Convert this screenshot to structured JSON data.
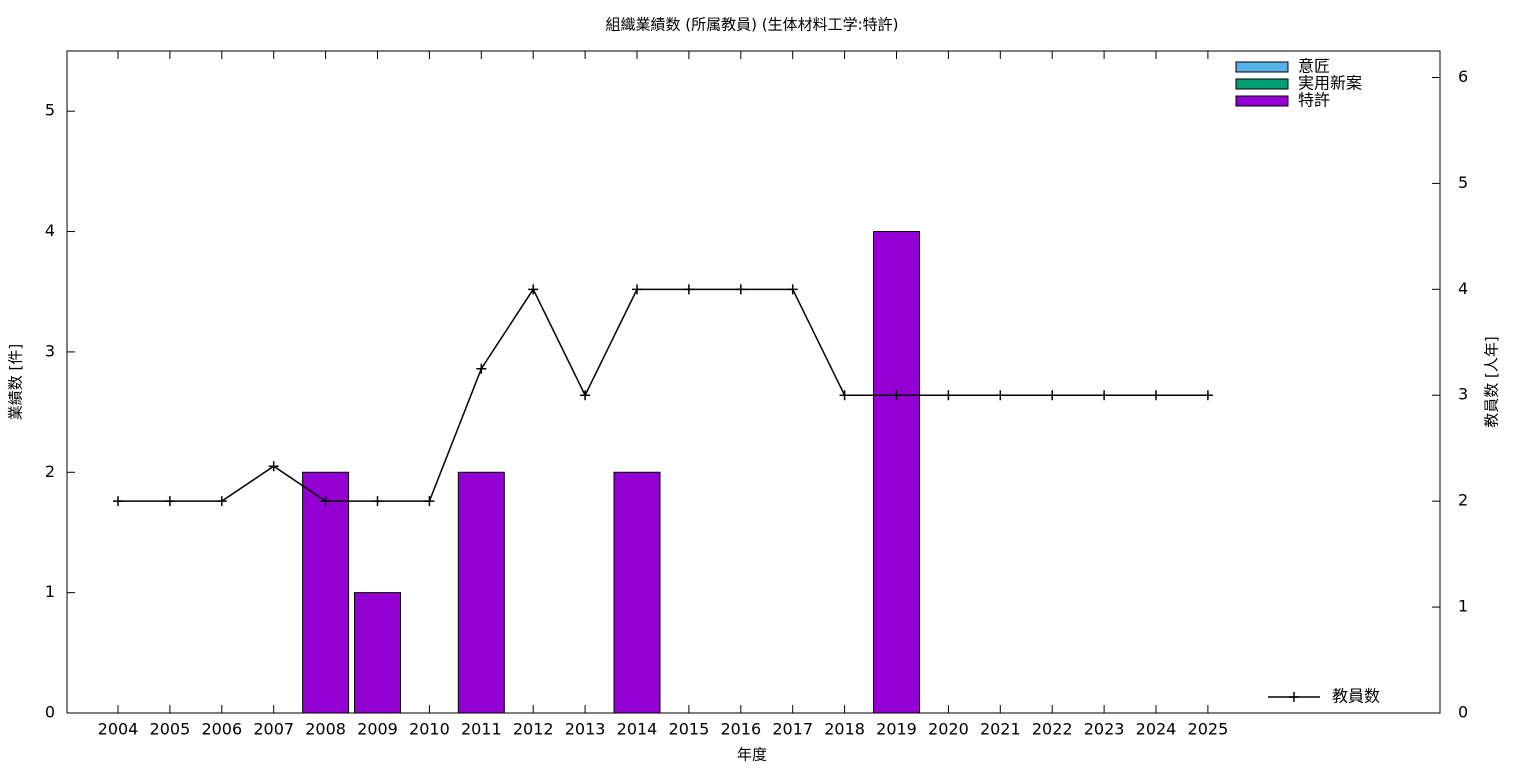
{
  "chart_data": {
    "type": "bar",
    "stacked": true,
    "title": "組織業績数 (所属教員) (生体材料工学:特許)",
    "x_label": "年度",
    "y_label": "業績数 [件]",
    "y2_label": "教員数 [人年]",
    "categories": [
      "2004",
      "2005",
      "2006",
      "2007",
      "2008",
      "2009",
      "2010",
      "2011",
      "2012",
      "2013",
      "2014",
      "2015",
      "2016",
      "2017",
      "2018",
      "2019",
      "2020",
      "2021",
      "2022",
      "2023",
      "2024",
      "2025"
    ],
    "series": [
      {
        "name": "意匠",
        "type": "bar",
        "color": "#56b4e9",
        "values": [
          0,
          0,
          0,
          0,
          0,
          0,
          0,
          0,
          0,
          0,
          0,
          0,
          0,
          0,
          0,
          0,
          0,
          0,
          0,
          0,
          0,
          0
        ]
      },
      {
        "name": "実用新案",
        "type": "bar",
        "color": "#009e73",
        "values": [
          0,
          0,
          0,
          0,
          0,
          0,
          0,
          0,
          0,
          0,
          0,
          0,
          0,
          0,
          0,
          0,
          0,
          0,
          0,
          0,
          0,
          0
        ]
      },
      {
        "name": "特許",
        "type": "bar",
        "color": "#9400d3",
        "values": [
          0,
          0,
          0,
          0,
          2,
          1,
          0,
          2,
          0,
          0,
          2,
          0,
          0,
          0,
          0,
          4,
          0,
          0,
          0,
          0,
          0,
          0
        ]
      },
      {
        "name": "教員数",
        "type": "line",
        "axis": "y2",
        "color": "#000000",
        "values": [
          2,
          2,
          2,
          2.33,
          2,
          2,
          2,
          3.25,
          4,
          3,
          4,
          4,
          4,
          4,
          3,
          3,
          3,
          3,
          3,
          3,
          3,
          3
        ]
      }
    ],
    "ylim": [
      0,
      5.5
    ],
    "yticks": [
      0,
      1,
      2,
      3,
      4,
      5
    ],
    "y2lim": [
      0,
      6.25
    ],
    "y2ticks": [
      0,
      1,
      2,
      3,
      4,
      5,
      6
    ],
    "bar_legend": "top-right",
    "line_legend": "bottom-right"
  }
}
